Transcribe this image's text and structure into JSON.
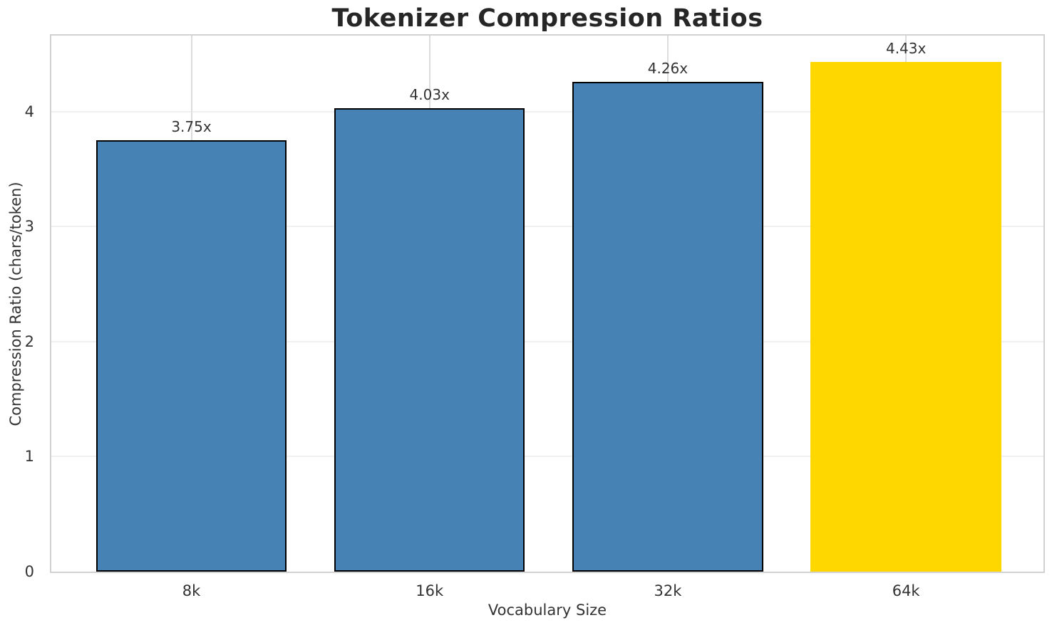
{
  "title": "Tokenizer Compression Ratios",
  "chart_data": {
    "type": "bar",
    "title": "Tokenizer Compression Ratios",
    "xlabel": "Vocabulary Size",
    "ylabel": "Compression Ratio (chars/token)",
    "categories": [
      "8k",
      "16k",
      "32k",
      "64k"
    ],
    "values": [
      3.75,
      4.03,
      4.26,
      4.43
    ],
    "bar_labels": [
      "3.75x",
      "4.03x",
      "4.26x",
      "4.43x"
    ],
    "yticks": [
      "0",
      "1",
      "2",
      "3",
      "4"
    ],
    "ytick_values": [
      0,
      1,
      2,
      3,
      4
    ],
    "ylim": [
      0,
      4.66
    ],
    "xlim": [
      -0.588,
      3.577
    ],
    "bar_width_units": 0.8,
    "grid": true,
    "legend": "none",
    "highlight_index": 3,
    "bar_colors": [
      "#4682B4",
      "#4682B4",
      "#4682B4",
      "#FFD700"
    ],
    "bar_edge_colors": [
      "#000000",
      "#000000",
      "#000000",
      "none"
    ]
  },
  "colors": {
    "background": "#ffffff",
    "bar_blue": "#4682B4",
    "bar_gold": "#FFD700",
    "bar_edge": "#000000",
    "spine": "#d2d2d2",
    "grid_horizontal": "#f0f0f0",
    "grid_vertical": "#dcdcdc",
    "tick_text": "#333333",
    "title_text": "#262626"
  }
}
